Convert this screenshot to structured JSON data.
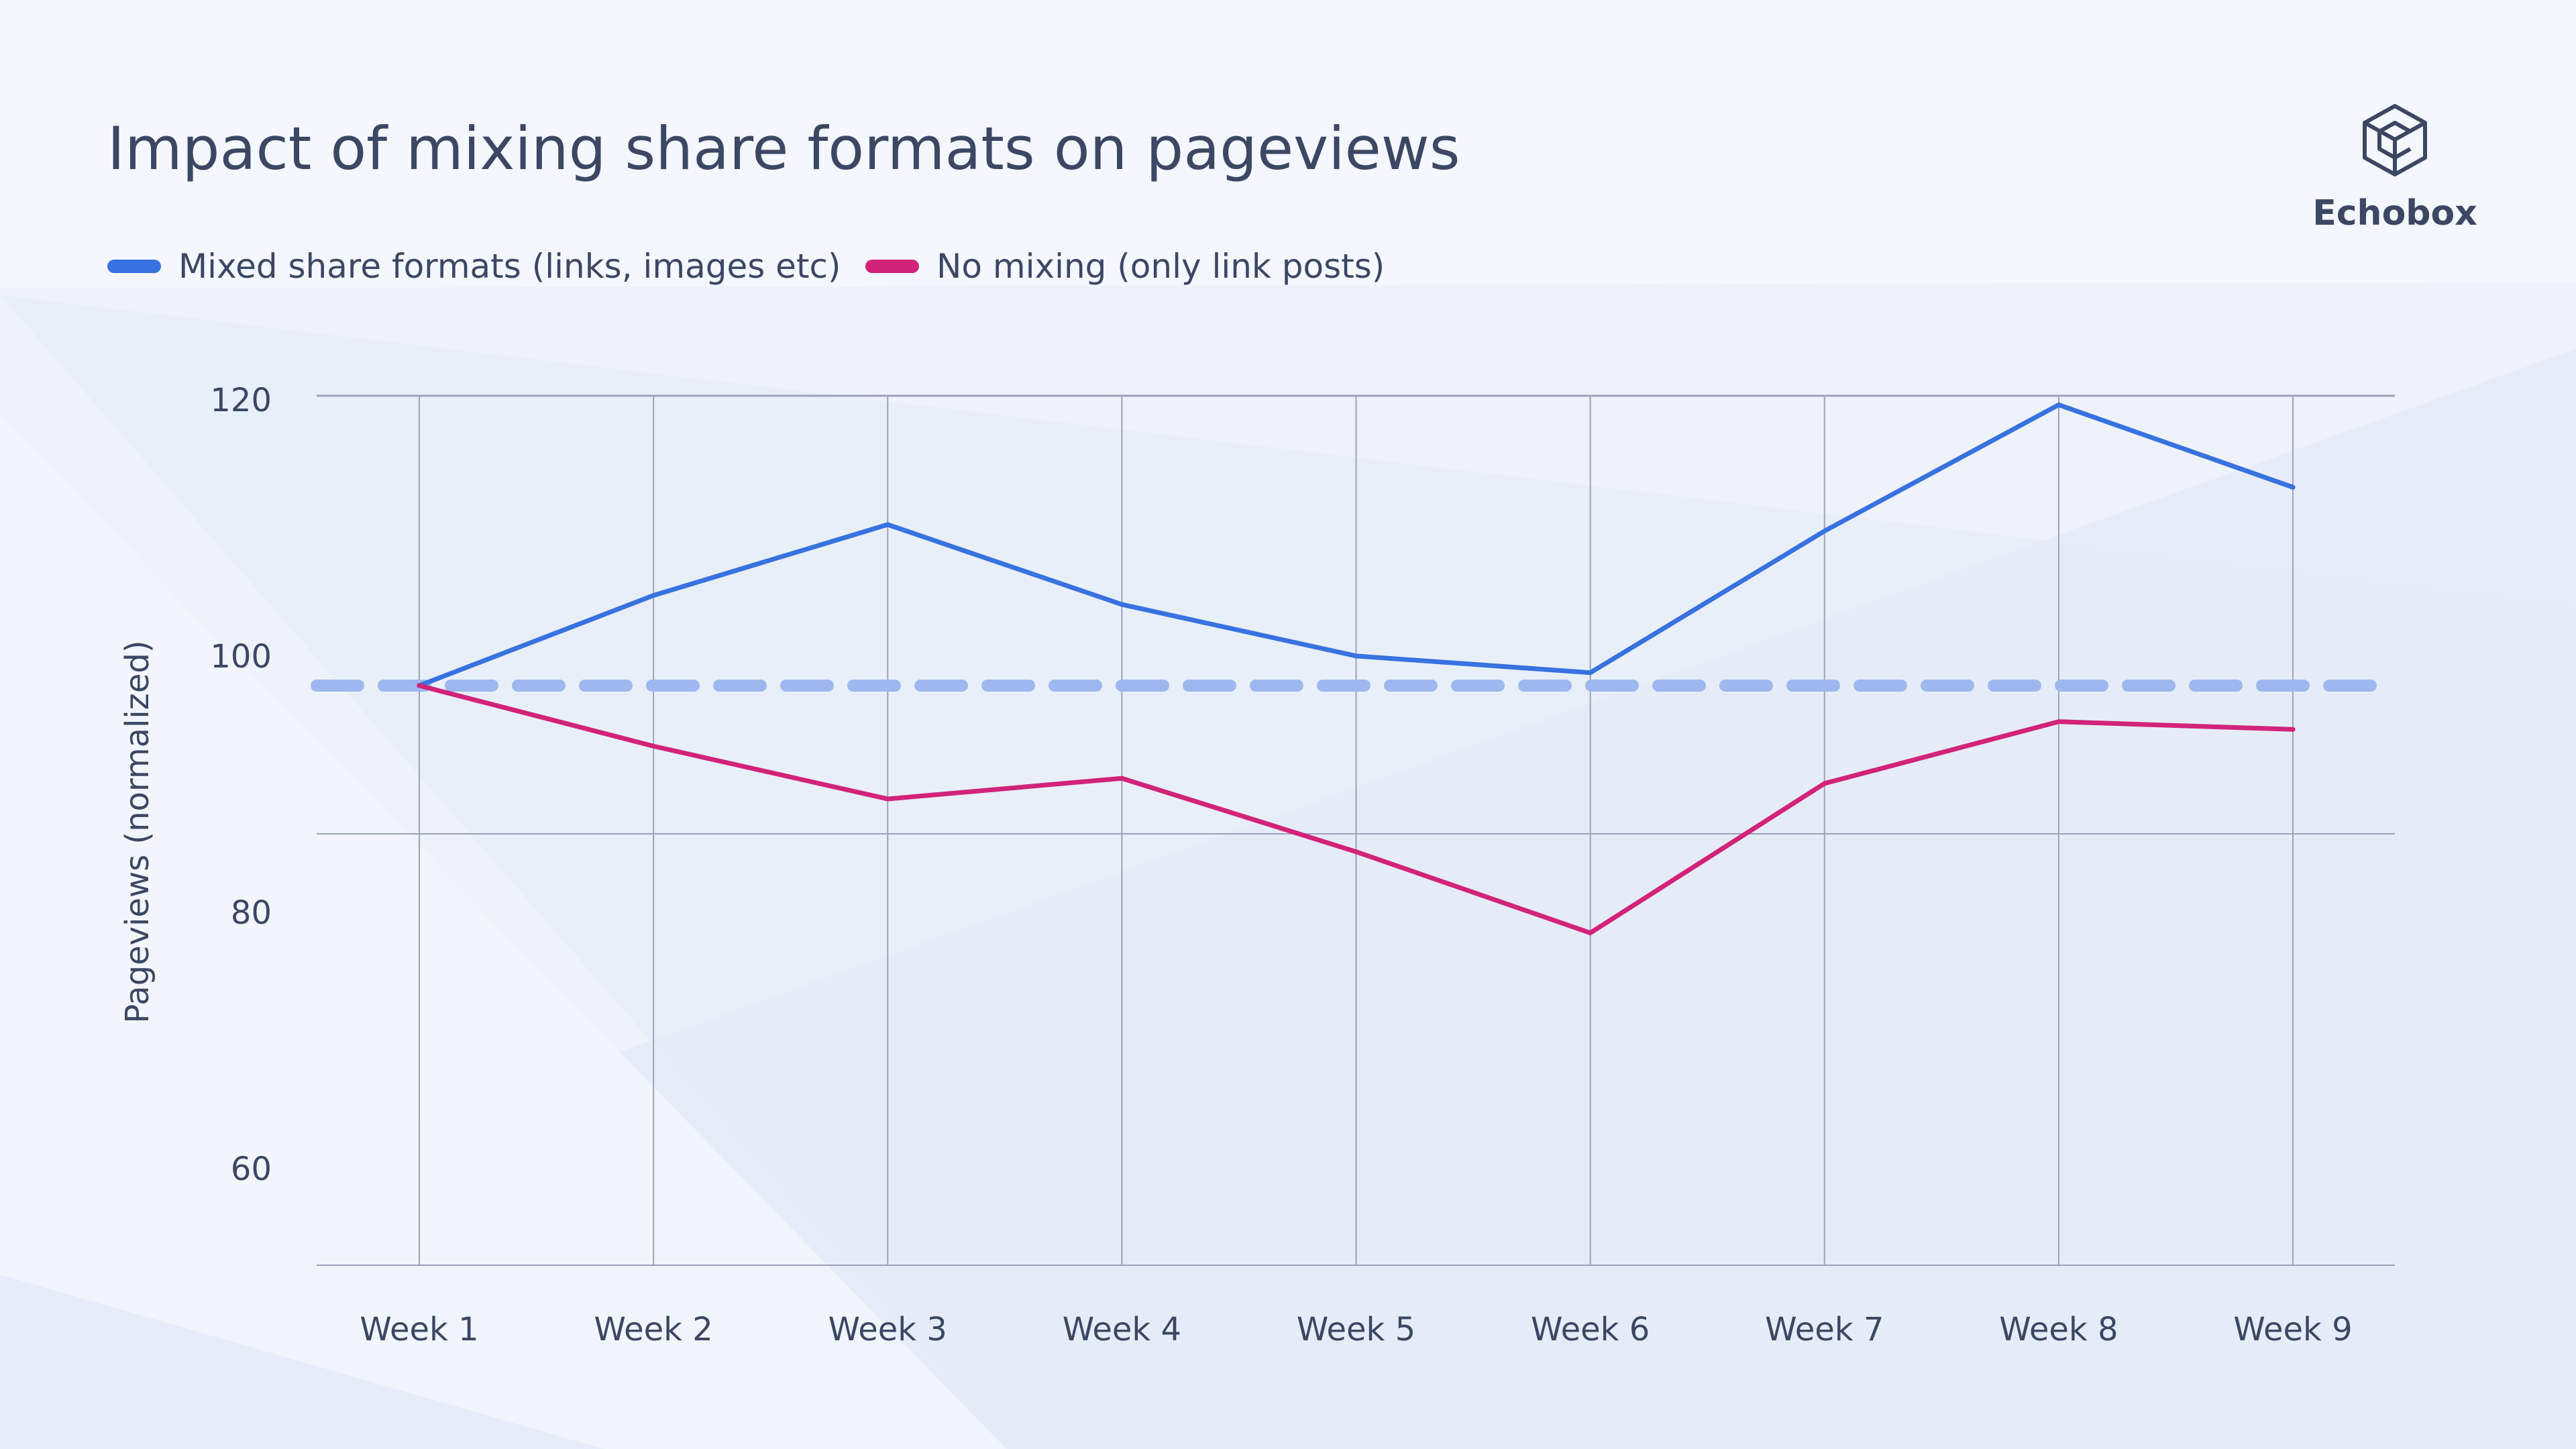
{
  "title": "Impact of mixing share formats on pageviews",
  "brand": {
    "name": "Echobox",
    "icon": "echobox-cube-logo-icon"
  },
  "colors": {
    "mixed": "#3772e0",
    "no_mixing": "#d2237a",
    "baseline": "#9cb8ee",
    "grid": "#9aa3b8",
    "text": "#3b4763"
  },
  "chart_data": {
    "type": "line",
    "title": "Impact of mixing share formats on pageviews",
    "xlabel": "",
    "ylabel": "Pageviews (normalized)",
    "categories": [
      "Week 1",
      "Week 2",
      "Week 3",
      "Week 4",
      "Week 5",
      "Week 6",
      "Week 7",
      "Week 8",
      "Week 9"
    ],
    "y_ticks": [
      120,
      100,
      80,
      60
    ],
    "ylim": [
      52.5,
      120
    ],
    "grid": true,
    "legend_position": "top-left",
    "series": [
      {
        "name": "Mixed share formats (links, images etc)",
        "values": [
          97.5,
          104.5,
          110,
          103.8,
          99.8,
          98.5,
          109.5,
          119.3,
          112.9
        ]
      },
      {
        "name": "No mixing (only link posts)",
        "values": [
          97.5,
          92.8,
          88.7,
          90.3,
          84.6,
          78.3,
          89.9,
          94.7,
          94.1
        ]
      }
    ],
    "reference_line": {
      "value": 97.5,
      "style": "dashed"
    }
  }
}
